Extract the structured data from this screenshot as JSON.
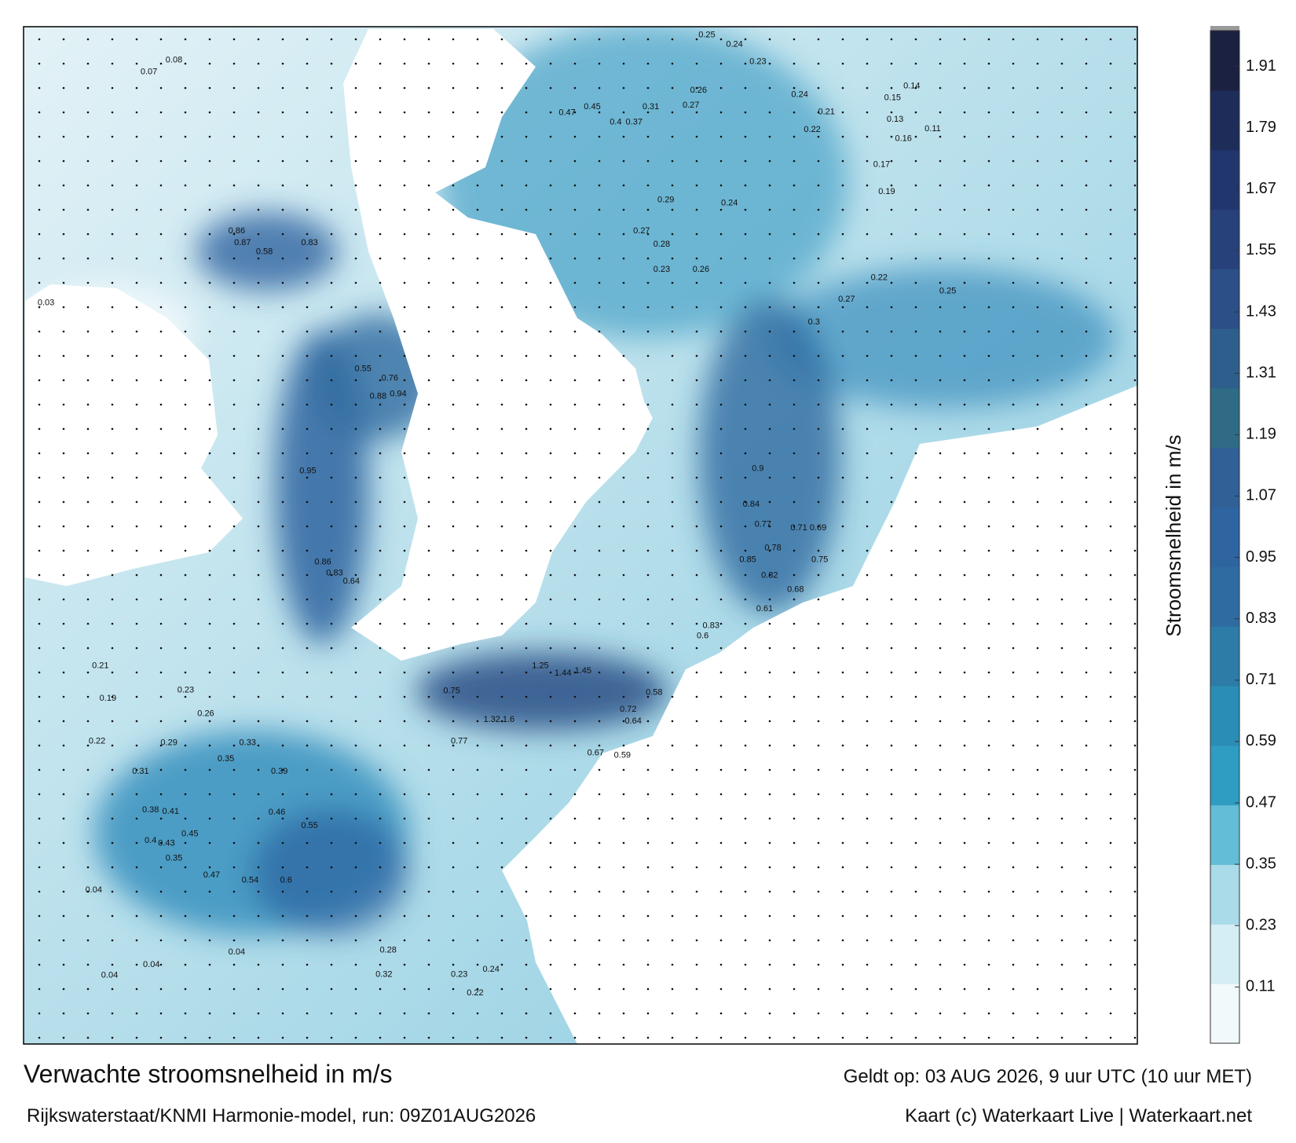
{
  "title": "Verwachte stroomsnelheid in m/s",
  "valid_time": "Geldt op: 03 AUG 2026, 9 uur UTC (10 uur MET)",
  "source": "Rijkswaterstaat/KNMI Harmonie-model, run: 09Z01AUG2026",
  "credit": "Kaart (c) Waterkaart Live | Waterkaart.net",
  "colorbar": {
    "label": "Stroomsnelheid in m/s",
    "lim": [
      0,
      1.98
    ],
    "ticks": [
      0.11,
      0.23,
      0.35,
      0.47,
      0.59,
      0.71,
      0.83,
      0.95,
      1.07,
      1.19,
      1.31,
      1.43,
      1.55,
      1.67,
      1.79,
      1.91
    ],
    "colors": [
      "#f2f9fb",
      "#d5edf4",
      "#a9dbe9",
      "#63bdd6",
      "#2f9cc2",
      "#2a8db5",
      "#2d7ca8",
      "#2f6ba0",
      "#2e64a0",
      "#306096",
      "#2f6b84",
      "#2e5f8c",
      "#2b4f86",
      "#27417a",
      "#22366e",
      "#1e2c5a",
      "#1b2140"
    ]
  },
  "map": {
    "speed_labels": [
      "0.25",
      "0.24",
      "0.23",
      "0.47",
      "0.45",
      "0.4",
      "0.37",
      "0.31",
      "0.27",
      "0.26",
      "0.24",
      "0.21",
      "0.22",
      "0.15",
      "0.14",
      "0.13",
      "0.16",
      "0.11",
      "0.17",
      "0.19",
      "0.29",
      "0.24",
      "0.27",
      "0.28",
      "0.23",
      "0.26",
      "0.3",
      "0.27",
      "0.22",
      "0.25",
      "0.83",
      "0.87",
      "0.58",
      "0.86",
      "0.94",
      "0.88",
      "0.76",
      "0.55",
      "1.25",
      "1.44",
      "1.45",
      "1.6",
      "1.32",
      "0.75",
      "0.77",
      "0.72",
      "0.64",
      "0.58",
      "0.67",
      "0.59",
      "0.9",
      "0.84",
      "0.77",
      "0.78",
      "0.85",
      "0.82",
      "0.71",
      "0.69",
      "0.75",
      "0.68",
      "0.61",
      "0.6",
      "0.83",
      "0.95",
      "0.86",
      "0.83",
      "0.64",
      "0.39",
      "0.46",
      "0.55",
      "0.6",
      "0.54",
      "0.47",
      "0.4",
      "0.43",
      "0.45",
      "0.35",
      "0.31",
      "0.38",
      "0.41",
      "0.29",
      "0.33",
      "0.35",
      "0.22",
      "0.19",
      "0.21",
      "0.23",
      "0.26",
      "0.04",
      "0.04",
      "0.04",
      "0.04",
      "0.23",
      "0.24",
      "0.22",
      "0.32",
      "0.28",
      "0.03",
      "0.07",
      "0.08"
    ]
  }
}
